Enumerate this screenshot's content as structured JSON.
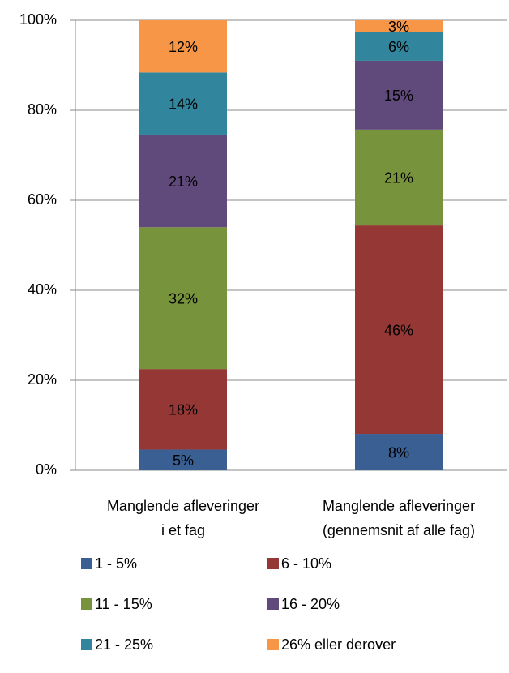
{
  "chart_data": {
    "type": "stacked_bar",
    "categories": [
      [
        "Manglende afleveringer",
        "i et fag"
      ],
      [
        "Manglende afleveringer",
        "(gennemsnit af alle fag)"
      ]
    ],
    "series": [
      {
        "name": "1 - 5%",
        "color": "#3a5f93",
        "values": [
          4.6,
          8.1
        ],
        "value_labels": [
          "5%",
          "8%"
        ]
      },
      {
        "name": "6 - 10%",
        "color": "#953735",
        "values": [
          17.9,
          46.3
        ],
        "value_labels": [
          "18%",
          "46%"
        ]
      },
      {
        "name": "11 - 15%",
        "color": "#77933c",
        "values": [
          31.5,
          21.3
        ],
        "value_labels": [
          "32%",
          "21%"
        ]
      },
      {
        "name": "16 - 20%",
        "color": "#604a7b",
        "values": [
          20.6,
          15.3
        ],
        "value_labels": [
          "21%",
          "15%"
        ]
      },
      {
        "name": "21 - 25%",
        "color": "#31859c",
        "values": [
          13.8,
          6.3
        ],
        "value_labels": [
          "14%",
          "6%"
        ]
      },
      {
        "name": "26% eller derover",
        "color": "#f79646",
        "values": [
          11.6,
          2.7
        ],
        "value_labels": [
          "12%",
          "3%"
        ]
      }
    ],
    "ylim": [
      0,
      100
    ],
    "yticks": [
      {
        "value": 0,
        "label": "0%"
      },
      {
        "value": 20,
        "label": "20%"
      },
      {
        "value": 40,
        "label": "40%"
      },
      {
        "value": 60,
        "label": "60%"
      },
      {
        "value": 80,
        "label": "80%"
      },
      {
        "value": 100,
        "label": "100%"
      }
    ],
    "grid": true
  }
}
